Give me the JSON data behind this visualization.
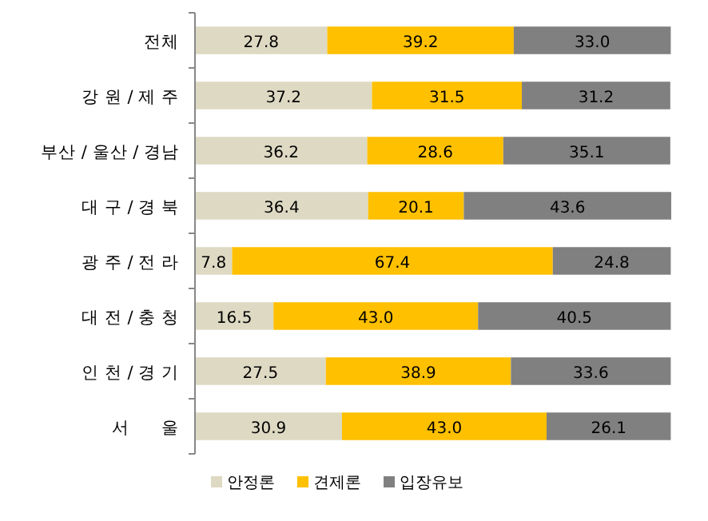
{
  "chart_data": {
    "type": "bar",
    "orientation": "horizontal",
    "stacked": true,
    "legend": "bottom",
    "categories": [
      "전체",
      "강 원 / 제 주",
      "부산 / 울산 / 경남",
      "대 구 / 경 북",
      "광 주 / 전 라",
      "대 전 / 충 청",
      "인 천 / 경 기",
      "서      울"
    ],
    "series": [
      {
        "name": "안정론",
        "color": "#ddd9c3",
        "values": [
          27.8,
          37.2,
          36.2,
          36.4,
          7.8,
          16.5,
          27.5,
          30.9
        ],
        "value_labels": [
          "27.8",
          "37.2",
          "36.2",
          "36.4",
          "7.8",
          "16.5",
          "27.5",
          "30.9"
        ]
      },
      {
        "name": "견제론",
        "color": "#ffc000",
        "values": [
          39.2,
          31.5,
          28.6,
          20.1,
          67.4,
          43.0,
          38.9,
          43.0
        ],
        "value_labels": [
          "39.2",
          "31.5",
          "28.6",
          "20.1",
          "67.4",
          "43.0",
          "38.9",
          "43.0"
        ]
      },
      {
        "name": "입장유보",
        "color": "#808080",
        "values": [
          33.0,
          31.2,
          35.1,
          43.6,
          24.8,
          40.5,
          33.6,
          26.1
        ],
        "value_labels": [
          "33.0",
          "31.2",
          "35.1",
          "43.6",
          "24.8",
          "40.5",
          "33.6",
          "26.1"
        ]
      }
    ]
  }
}
